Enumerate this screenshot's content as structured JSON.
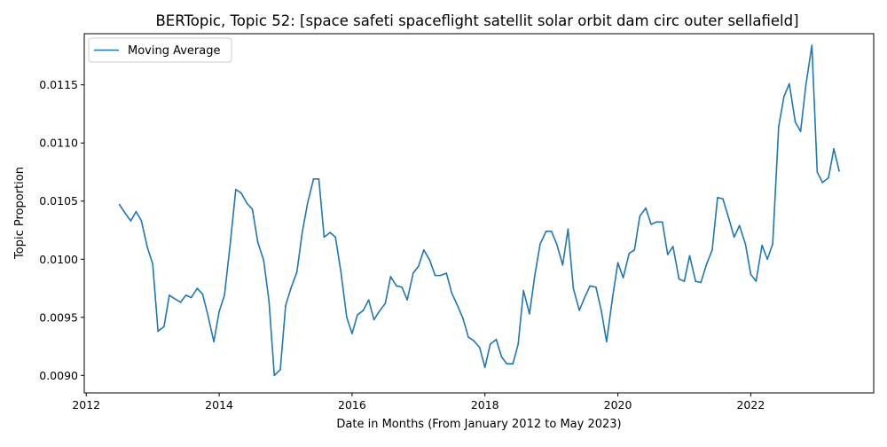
{
  "chart_data": {
    "type": "line",
    "title": "BERTopic, Topic 52: [space safeti spaceflight satellit solar orbit dam circ outer sellafield]",
    "xlabel": "Date in Months (From January 2012 to May 2023)",
    "ylabel": "Topic Proportion",
    "xlim": [
      2011.97,
      2023.85
    ],
    "ylim": [
      0.00885,
      0.01194
    ],
    "x_ticks": [
      2012,
      2014,
      2016,
      2018,
      2020,
      2022
    ],
    "x_tick_labels": [
      "2012",
      "2014",
      "2016",
      "2018",
      "2020",
      "2022"
    ],
    "y_ticks": [
      0.009,
      0.0095,
      0.01,
      0.0105,
      0.011,
      0.0115
    ],
    "y_tick_labels": [
      "0.0090",
      "0.0095",
      "0.0100",
      "0.0105",
      "0.0110",
      "0.0115"
    ],
    "grid": false,
    "legend_position": "top-left",
    "color": "#1f77b4",
    "series": [
      {
        "name": "Moving Average",
        "x": [
          2012.5,
          2012.58,
          2012.67,
          2012.75,
          2012.83,
          2012.92,
          2013.0,
          2013.08,
          2013.17,
          2013.25,
          2013.33,
          2013.42,
          2013.5,
          2013.58,
          2013.67,
          2013.75,
          2013.83,
          2013.92,
          2014.0,
          2014.08,
          2014.17,
          2014.25,
          2014.33,
          2014.42,
          2014.5,
          2014.58,
          2014.67,
          2014.75,
          2014.83,
          2014.92,
          2015.0,
          2015.08,
          2015.17,
          2015.25,
          2015.33,
          2015.42,
          2015.5,
          2015.58,
          2015.67,
          2015.75,
          2015.83,
          2015.92,
          2016.0,
          2016.08,
          2016.17,
          2016.25,
          2016.33,
          2016.42,
          2016.5,
          2016.58,
          2016.67,
          2016.75,
          2016.83,
          2016.92,
          2017.0,
          2017.08,
          2017.17,
          2017.25,
          2017.33,
          2017.42,
          2017.5,
          2017.58,
          2017.67,
          2017.75,
          2017.83,
          2017.92,
          2018.0,
          2018.08,
          2018.17,
          2018.25,
          2018.33,
          2018.42,
          2018.5,
          2018.58,
          2018.67,
          2018.75,
          2018.83,
          2018.92,
          2019.0,
          2019.08,
          2019.17,
          2019.25,
          2019.33,
          2019.42,
          2019.5,
          2019.58,
          2019.67,
          2019.75,
          2019.83,
          2019.92,
          2020.0,
          2020.08,
          2020.17,
          2020.25,
          2020.33,
          2020.42,
          2020.5,
          2020.58,
          2020.67,
          2020.75,
          2020.83,
          2020.92,
          2021.0,
          2021.08,
          2021.17,
          2021.25,
          2021.33,
          2021.42,
          2021.5,
          2021.58,
          2021.67,
          2021.75,
          2021.83,
          2021.92,
          2022.0,
          2022.08,
          2022.17,
          2022.25,
          2022.33,
          2022.42,
          2022.5,
          2022.58,
          2022.67,
          2022.75,
          2022.83,
          2022.92,
          2023.0,
          2023.08,
          2023.17,
          2023.25,
          2023.33
        ],
        "y": [
          0.01047,
          0.0104,
          0.01033,
          0.01041,
          0.01033,
          0.0101,
          0.00996,
          0.00938,
          0.00942,
          0.00969,
          0.00966,
          0.00963,
          0.00969,
          0.00967,
          0.00975,
          0.0097,
          0.00952,
          0.00929,
          0.00955,
          0.00969,
          0.01015,
          0.0106,
          0.01057,
          0.01048,
          0.01043,
          0.01015,
          0.00999,
          0.00964,
          0.009,
          0.00905,
          0.0096,
          0.00975,
          0.00989,
          0.01023,
          0.01048,
          0.01069,
          0.01069,
          0.01019,
          0.01023,
          0.01019,
          0.0099,
          0.0095,
          0.00936,
          0.00952,
          0.00956,
          0.00965,
          0.00948,
          0.00956,
          0.00962,
          0.00985,
          0.00977,
          0.00976,
          0.00965,
          0.00988,
          0.00994,
          0.01008,
          0.00999,
          0.00986,
          0.00986,
          0.00988,
          0.00971,
          0.00961,
          0.00949,
          0.00933,
          0.0093,
          0.00924,
          0.00907,
          0.00927,
          0.00931,
          0.00916,
          0.0091,
          0.0091,
          0.00927,
          0.00973,
          0.00953,
          0.00986,
          0.01013,
          0.01024,
          0.01024,
          0.01013,
          0.00995,
          0.01026,
          0.00975,
          0.00956,
          0.00967,
          0.00977,
          0.00976,
          0.00956,
          0.00929,
          0.00967,
          0.00997,
          0.00984,
          0.01005,
          0.01008,
          0.01037,
          0.01044,
          0.0103,
          0.01032,
          0.01032,
          0.01004,
          0.01011,
          0.00983,
          0.00981,
          0.01003,
          0.00981,
          0.0098,
          0.00995,
          0.01008,
          0.01053,
          0.01052,
          0.01035,
          0.01019,
          0.01029,
          0.01013,
          0.00987,
          0.00981,
          0.01012,
          0.01,
          0.01013,
          0.01114,
          0.0114,
          0.01151,
          0.01118,
          0.0111,
          0.0115,
          0.01184,
          0.01075,
          0.01066,
          0.0107,
          0.01095,
          0.01076
        ]
      }
    ]
  }
}
